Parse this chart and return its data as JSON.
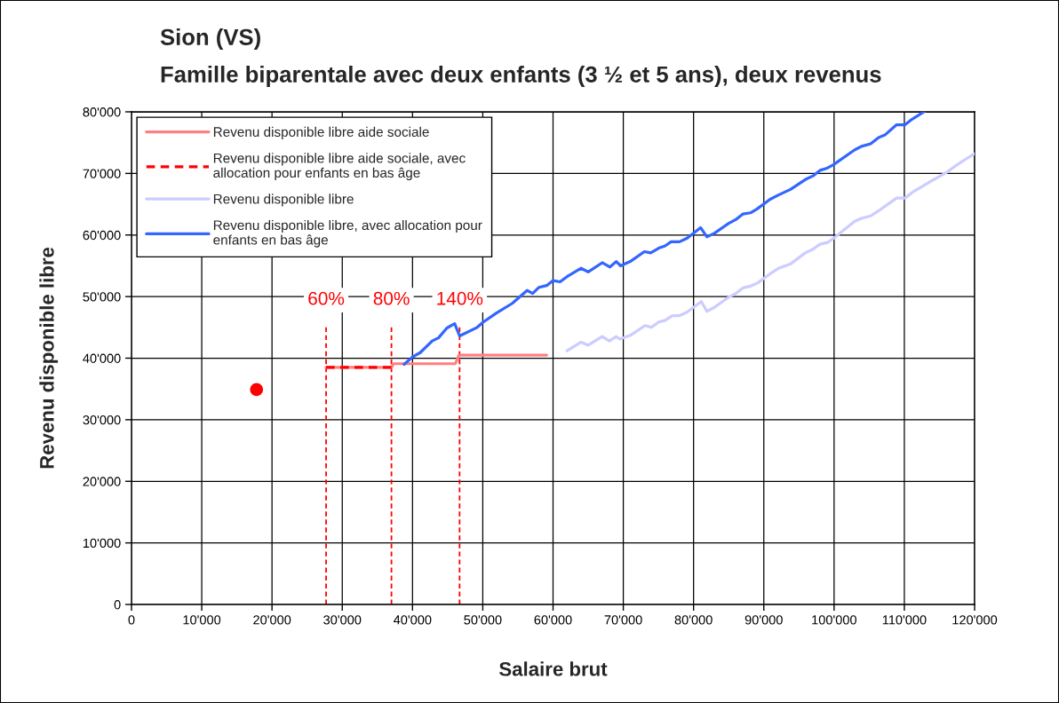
{
  "chart_data": {
    "type": "line",
    "title": "Sion (VS)",
    "subtitle": "Famille biparentale avec deux enfants (3 ½ et 5 ans), deux revenus",
    "xlabel": "Salaire brut",
    "ylabel": "Revenu disponible libre",
    "xlim": [
      0,
      120000
    ],
    "xticks": [
      0,
      {
        "value": 10000,
        "label": "10'000"
      },
      {
        "value": 20000,
        "label": "20'000"
      },
      {
        "value": 30000,
        "label": "30'000"
      },
      {
        "value": 40000,
        "label": "40'000"
      },
      {
        "value": 50000,
        "label": "50'000"
      },
      {
        "value": 60000,
        "label": "60'000"
      },
      {
        "value": 70000,
        "label": "70'000"
      },
      {
        "value": 80000,
        "label": "80'000"
      },
      {
        "value": 90000,
        "label": "90'000"
      },
      {
        "value": 100000,
        "label": "100'000"
      },
      {
        "value": 110000,
        "label": "110'000"
      },
      {
        "value": 120000,
        "label": "120'000"
      }
    ],
    "ylim": [
      0,
      80000
    ],
    "yticks": [
      0,
      {
        "value": 10000,
        "label": "10'000"
      },
      {
        "value": 20000,
        "label": "20'000"
      },
      {
        "value": 30000,
        "label": "30'000"
      },
      {
        "value": 40000,
        "label": "40'000"
      },
      {
        "value": 50000,
        "label": "50'000"
      },
      {
        "value": 60000,
        "label": "60'000"
      },
      {
        "value": 70000,
        "label": "70'000"
      },
      {
        "value": 80000,
        "label": "80'000"
      }
    ],
    "grid": true,
    "legend": "top left",
    "marker": "none",
    "series": [
      {
        "name": "Revenu disponible libre aide sociale",
        "color": "#ff8080",
        "line_style": "solid",
        "x": [
          27700,
          37000,
          37300,
          46100,
          46600,
          59100
        ],
        "values": [
          38500,
          38500,
          39100,
          39100,
          40500,
          40500
        ]
      },
      {
        "name": "Revenu disponible libre aide sociale, avec\nallocation pour enfants en bas âge",
        "color": "#ff0000",
        "line_style": "dashed",
        "x": [
          27700,
          37000
        ],
        "values": [
          38500,
          38500
        ]
      },
      {
        "name": "Revenu disponible libre",
        "color": "#ccccff",
        "line_style": "solid",
        "x": [
          62000,
          64000,
          65000,
          67000,
          68000,
          69000,
          69500,
          71000,
          73100,
          74000,
          75100,
          75900,
          77000,
          78000,
          79100,
          81100,
          81900,
          82900,
          85000,
          86000,
          87000,
          88100,
          89100,
          90900,
          92100,
          93800,
          95900,
          97000,
          98000,
          99100,
          100200,
          102900,
          103900,
          105200,
          106300,
          107300,
          108900,
          110100,
          111100,
          113900,
          116200,
          117000,
          118300,
          120000
        ],
        "values": [
          41200,
          42600,
          42100,
          43500,
          42800,
          43500,
          43100,
          43700,
          45300,
          45000,
          45900,
          46100,
          46900,
          46900,
          47500,
          49200,
          47600,
          48200,
          49900,
          50500,
          51400,
          51700,
          52200,
          53700,
          54600,
          55300,
          57100,
          57700,
          58500,
          58800,
          59700,
          62200,
          62700,
          63100,
          63900,
          64700,
          66000,
          66000,
          66900,
          68800,
          70300,
          71000,
          72000,
          73200
        ]
      },
      {
        "name": "Revenu disponible libre, avec allocation pour\nenfants en bas âge",
        "color": "#3366ff",
        "line_style": "solid",
        "x": [
          38800,
          40000,
          41100,
          42800,
          43700,
          44900,
          46000,
          46700,
          49200,
          50000,
          51900,
          54200,
          56300,
          57100,
          58000,
          59100,
          60000,
          61000,
          62200,
          64000,
          65000,
          67000,
          68100,
          69000,
          69600,
          71000,
          73000,
          73900,
          75100,
          75900,
          76800,
          78000,
          79100,
          81000,
          81900,
          83000,
          85000,
          86000,
          87000,
          88100,
          89000,
          90900,
          92100,
          93800,
          95900,
          97000,
          98000,
          98900,
          99900,
          102900,
          103900,
          105200,
          106300,
          107300,
          108900,
          110100,
          111100,
          112800
        ],
        "values": [
          39000,
          40200,
          40900,
          42800,
          43300,
          44900,
          45600,
          43600,
          45000,
          45800,
          47300,
          48900,
          51000,
          50500,
          51500,
          51800,
          52600,
          52400,
          53400,
          54600,
          54000,
          55500,
          54800,
          55700,
          55000,
          55700,
          57300,
          57100,
          57900,
          58200,
          58900,
          58900,
          59500,
          61200,
          59700,
          60300,
          61900,
          62500,
          63400,
          63600,
          64200,
          65800,
          66500,
          67400,
          69000,
          69600,
          70500,
          70800,
          71400,
          73800,
          74400,
          74800,
          75800,
          76300,
          77900,
          77900,
          78800,
          80000
        ]
      },
      {
        "type": "scatter",
        "color": "#ff0000",
        "marker": "circle",
        "x": [
          17800
        ],
        "values": [
          34900
        ]
      }
    ],
    "ref_lines": [
      {
        "axis": "x",
        "value": 27700,
        "color": "#ff0000",
        "line_style": "dashed"
      },
      {
        "axis": "x",
        "value": 37000,
        "color": "#ff0000",
        "line_style": "dashed"
      },
      {
        "axis": "x",
        "value": 46700,
        "color": "#ff0000",
        "line_style": "dashed"
      }
    ],
    "annotations": [
      "60%",
      "80%",
      "140%"
    ]
  }
}
